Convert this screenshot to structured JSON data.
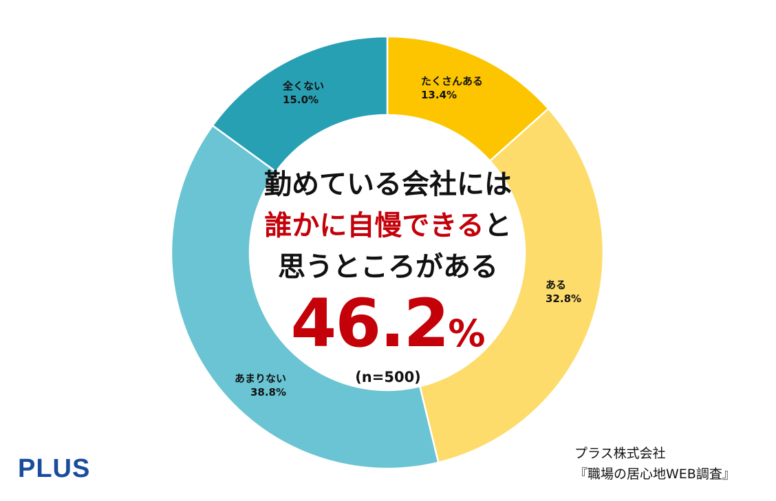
{
  "chart_data": {
    "type": "pie",
    "slices": [
      {
        "label": "たくさんある",
        "value": 13.4,
        "value_label": "13.4%",
        "color": "#fcc500"
      },
      {
        "label": "ある",
        "value": 32.8,
        "value_label": "32.8%",
        "color": "#fddc6c"
      },
      {
        "label": "あまりない",
        "value": 38.8,
        "value_label": "38.8%",
        "color": "#6ac4d3"
      },
      {
        "label": "全くない",
        "value": 15.0,
        "value_label": "15.0%",
        "color": "#28a0b4"
      }
    ],
    "center": {
      "line1": "勤めている会社には",
      "line2_accent": "誰かに自慢できる",
      "line2_rest": "と",
      "line3": "思うところがある",
      "big_number": "46.2",
      "big_unit": "%",
      "sample": "(n=500)"
    },
    "accent_color": "#c40009"
  },
  "footer": {
    "brand": "PLUS",
    "source_line1": "プラス株式会社",
    "source_line2": "『職場の居心地WEB調査』"
  }
}
